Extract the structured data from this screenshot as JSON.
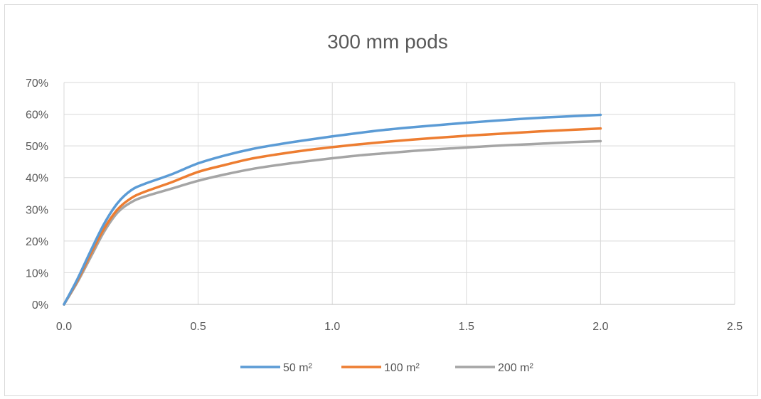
{
  "chart_data": {
    "type": "line",
    "title": "300 mm pods",
    "xlabel": "",
    "ylabel": "",
    "xlim": [
      0,
      2.5
    ],
    "ylim": [
      0,
      0.7
    ],
    "x_ticks": [
      "0.0",
      "0.5",
      "1.0",
      "1.5",
      "2.0",
      "2.5"
    ],
    "y_ticks": [
      "0%",
      "10%",
      "20%",
      "30%",
      "40%",
      "50%",
      "60%",
      "70%"
    ],
    "grid": true,
    "legend_position": "bottom",
    "x": [
      0,
      0.05,
      0.1,
      0.15,
      0.2,
      0.25,
      0.3,
      0.4,
      0.5,
      0.6,
      0.7,
      0.8,
      0.9,
      1.0,
      1.1,
      1.2,
      1.3,
      1.4,
      1.5,
      1.6,
      1.7,
      1.8,
      1.9,
      2.0
    ],
    "series": [
      {
        "name": "50 m²",
        "color": "#5b9bd5",
        "values": [
          0.0,
          0.08,
          0.17,
          0.255,
          0.32,
          0.36,
          0.38,
          0.41,
          0.445,
          0.47,
          0.49,
          0.505,
          0.518,
          0.53,
          0.541,
          0.551,
          0.559,
          0.566,
          0.573,
          0.579,
          0.585,
          0.59,
          0.594,
          0.598
        ]
      },
      {
        "name": "100 m²",
        "color": "#ed7d31",
        "values": [
          0.0,
          0.075,
          0.16,
          0.24,
          0.3,
          0.335,
          0.355,
          0.385,
          0.418,
          0.44,
          0.46,
          0.474,
          0.486,
          0.496,
          0.505,
          0.513,
          0.52,
          0.526,
          0.532,
          0.537,
          0.542,
          0.547,
          0.551,
          0.555
        ]
      },
      {
        "name": "200 m²",
        "color": "#a5a5a5",
        "values": [
          0.0,
          0.07,
          0.15,
          0.23,
          0.29,
          0.322,
          0.34,
          0.365,
          0.39,
          0.41,
          0.427,
          0.44,
          0.451,
          0.461,
          0.47,
          0.477,
          0.484,
          0.49,
          0.495,
          0.5,
          0.504,
          0.508,
          0.512,
          0.515
        ]
      }
    ]
  }
}
